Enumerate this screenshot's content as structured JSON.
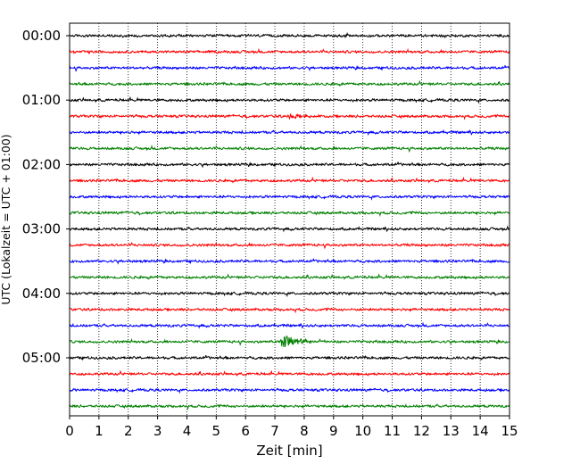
{
  "chart_data": {
    "type": "line",
    "title": "",
    "xlabel": "Zeit  [min]",
    "ylabel": "UTC (Lokalzeit = UTC + 01:00)",
    "xlim": [
      0,
      15
    ],
    "x_ticks": [
      "0",
      "1",
      "2",
      "3",
      "4",
      "5",
      "6",
      "7",
      "8",
      "9",
      "10",
      "11",
      "12",
      "13",
      "14",
      "15"
    ],
    "y_ticks": [
      "00:00",
      "01:00",
      "02:00",
      "03:00",
      "04:00",
      "05:00"
    ],
    "grid": "vertical dotted",
    "trace_colors": [
      "#000000",
      "#ff0000",
      "#0000ff",
      "#008000"
    ],
    "rows_per_hour": 4,
    "rows": 24,
    "events": [
      {
        "row": 19,
        "x_min": 7.3,
        "amplitude": "large"
      },
      {
        "row": 5,
        "x_min": 7.5,
        "amplitude": "small"
      }
    ]
  }
}
